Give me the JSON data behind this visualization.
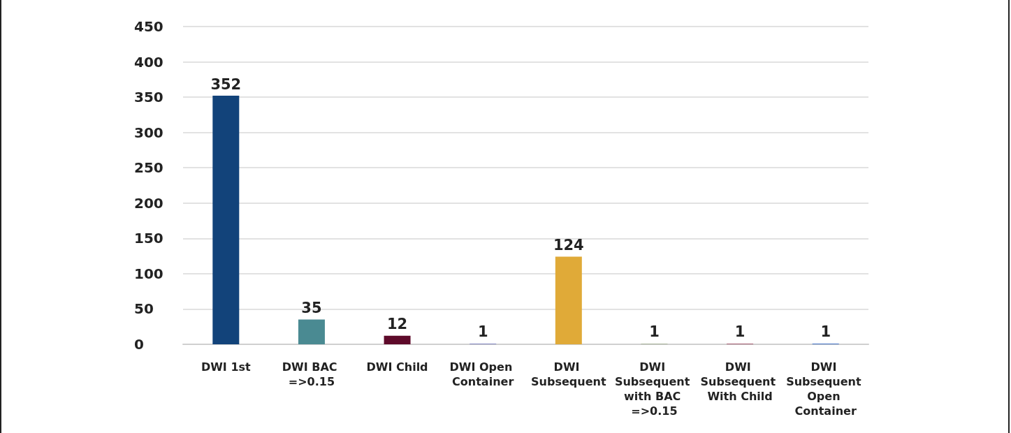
{
  "chart_data": {
    "type": "bar",
    "categories": [
      "DWI 1st",
      "DWI BAC =>0.15",
      "DWI Child",
      "DWI Open Container",
      "DWI Subsequent",
      "DWI Subsequent with BAC =>0.15",
      "DWI Subsequent With Child",
      "DWI Subsequent Open Container"
    ],
    "values": [
      352,
      35,
      12,
      1,
      124,
      1,
      1,
      1
    ],
    "colors": [
      "#12437a",
      "#4a8a92",
      "#5e0a2a",
      "#7f84c0",
      "#e0aa38",
      "#a9b49a",
      "#a35a6e",
      "#3e6fc4"
    ],
    "ylim": [
      0,
      450
    ],
    "yticks": [
      0,
      50,
      100,
      150,
      200,
      250,
      300,
      350,
      400,
      450
    ],
    "grid": "y",
    "data_labels": true
  }
}
